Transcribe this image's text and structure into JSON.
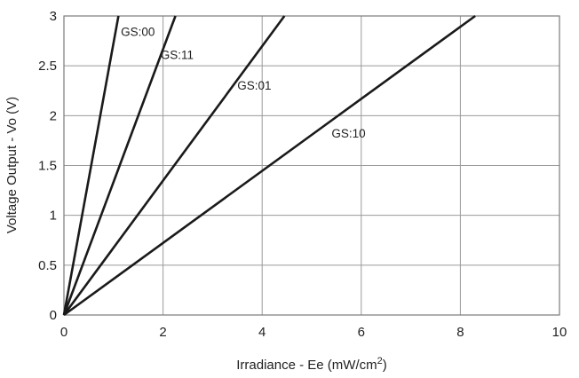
{
  "chart_data": {
    "type": "line",
    "xlabel": "Irradiance - Ee (mW/cm",
    "xlabel_sup": "2",
    "xlabel_suffix": ")",
    "ylabel": "Voltage Output - Vo (V)",
    "xlim": [
      0,
      10
    ],
    "ylim": [
      0,
      3
    ],
    "xticks": [
      "0",
      "2",
      "4",
      "6",
      "8",
      "10"
    ],
    "yticks": [
      "0",
      "0.5",
      "1",
      "1.5",
      "2",
      "2.5",
      "3"
    ],
    "grid": true,
    "legend": "none",
    "series": [
      {
        "name": "GS:00",
        "x": [
          0,
          1.1
        ],
        "y": [
          0,
          3
        ]
      },
      {
        "name": "GS:11",
        "x": [
          0,
          2.25
        ],
        "y": [
          0,
          3
        ]
      },
      {
        "name": "GS:01",
        "x": [
          0,
          4.45
        ],
        "y": [
          0,
          3
        ]
      },
      {
        "name": "GS:10",
        "x": [
          0,
          8.3
        ],
        "y": [
          0,
          3
        ]
      }
    ],
    "annotations": [
      {
        "text": "GS:00",
        "x": 1.15,
        "y": 2.8
      },
      {
        "text": "GS:11",
        "x": 1.95,
        "y": 2.57
      },
      {
        "text": "GS:01",
        "x": 3.5,
        "y": 2.26
      },
      {
        "text": "GS:10",
        "x": 5.4,
        "y": 1.78
      }
    ]
  }
}
